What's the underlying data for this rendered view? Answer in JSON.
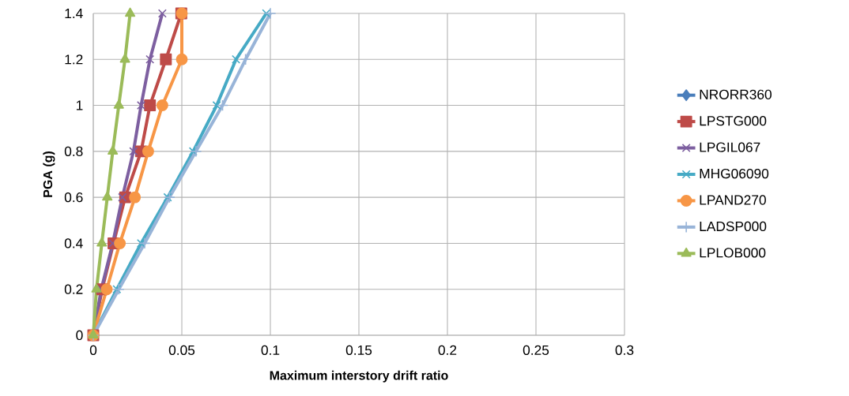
{
  "chart_data": {
    "type": "line",
    "xlabel": "Maximum  interstory  drift ratio",
    "ylabel": "PGA (g)",
    "xlim": [
      0,
      0.3
    ],
    "xticks": [
      0,
      0.05,
      0.1,
      0.15,
      0.2,
      0.25,
      0.3
    ],
    "ylim": [
      0,
      1.4
    ],
    "yticks": [
      0,
      0.2,
      0.4,
      0.6,
      0.8,
      1,
      1.2,
      1.4
    ],
    "grid": true,
    "legend": "right",
    "line_style": "solid",
    "series": [
      {
        "name": "NRORR360",
        "color": "#4a7ebb",
        "marker": "diamond",
        "x": [
          null,
          null,
          null,
          null,
          null,
          null,
          null,
          null
        ],
        "values": [
          null,
          null,
          null,
          null,
          null,
          null,
          null,
          null
        ]
      },
      {
        "name": "LPSTG000",
        "color": "#be4b48",
        "marker": "square",
        "x": [
          0,
          0.005,
          0.0114,
          0.018,
          0.027,
          0.032,
          0.041,
          0.0497
        ],
        "values": [
          0,
          0.2,
          0.4,
          0.6,
          0.8,
          1,
          1.2,
          1.4
        ]
      },
      {
        "name": "LPGIL067",
        "color": "#7d5fa0",
        "marker": "cross",
        "x": [
          0,
          0.0045,
          0.011,
          0.0164,
          0.0227,
          0.027,
          0.032,
          0.039
        ],
        "values": [
          0,
          0.2,
          0.4,
          0.6,
          0.8,
          1,
          1.2,
          1.4
        ]
      },
      {
        "name": "MHG06090",
        "color": "#46aac5",
        "marker": "cross",
        "x": [
          0,
          0.0133,
          0.027,
          0.042,
          0.0564,
          0.0697,
          0.0806,
          0.0977
        ],
        "values": [
          0,
          0.2,
          0.4,
          0.6,
          0.8,
          1,
          1.2,
          1.4
        ]
      },
      {
        "name": "LPAND270",
        "color": "#f79646",
        "marker": "circle",
        "x": [
          0,
          0.0076,
          0.015,
          0.0235,
          0.031,
          0.039,
          0.05,
          0.05
        ],
        "values": [
          0,
          0.2,
          0.4,
          0.6,
          0.8,
          1,
          1.2,
          1.4
        ]
      },
      {
        "name": "LADSP000",
        "color": "#98b4d8",
        "marker": "plus",
        "x": [
          0,
          0.0144,
          0.029,
          0.043,
          0.058,
          0.073,
          0.086,
          0.1
        ],
        "values": [
          0,
          0.2,
          0.4,
          0.6,
          0.8,
          1,
          1.2,
          1.4
        ]
      },
      {
        "name": "LPLOB000",
        "color": "#9bbb59",
        "marker": "triangle",
        "x": [
          0,
          0.0018,
          0.0048,
          0.0079,
          0.011,
          0.0144,
          0.0179,
          0.0208
        ],
        "values": [
          0,
          0.2,
          0.4,
          0.6,
          0.8,
          1,
          1.2,
          1.4
        ]
      }
    ]
  }
}
